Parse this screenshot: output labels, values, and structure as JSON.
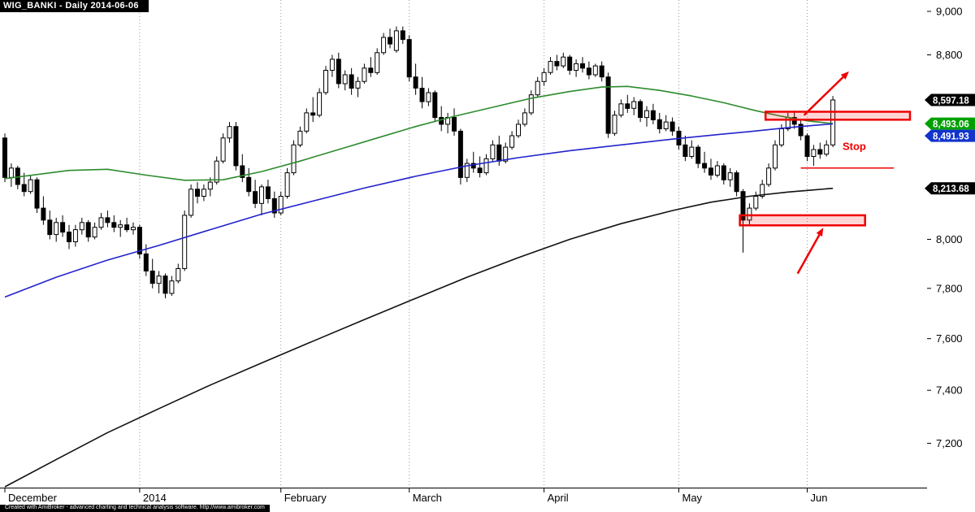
{
  "title": "WIG_BANKI - Daily 2014-06-06",
  "footer": "Created with AmiBroker - advanced charting and technical analysis software. http://www.amibroker.com",
  "axis": {
    "y_ticks": [
      {
        "label": "9,000",
        "value": 9000
      },
      {
        "label": "8,800",
        "value": 8800
      },
      {
        "label": "8,000",
        "value": 8000
      },
      {
        "label": "7,800",
        "value": 7800
      },
      {
        "label": "7,600",
        "value": 7600
      },
      {
        "label": "7,400",
        "value": 7400
      },
      {
        "label": "7,200",
        "value": 7200
      }
    ],
    "x_labels": [
      {
        "label": "December",
        "index": 0
      },
      {
        "label": "2014",
        "index": 21
      },
      {
        "label": "February",
        "index": 43
      },
      {
        "label": "March",
        "index": 63
      },
      {
        "label": "April",
        "index": 84
      },
      {
        "label": "May",
        "index": 105
      },
      {
        "label": "Jun",
        "index": 125
      }
    ]
  },
  "callouts": [
    {
      "label": "8,597.18",
      "value": 8597.18,
      "bg": "#000000"
    },
    {
      "label": "8,493.06",
      "value": 8493.06,
      "bg": "#00a000"
    },
    {
      "label": "8,491.93",
      "value": 8491.93,
      "bg": "#1133cc"
    },
    {
      "label": "8,213.68",
      "value": 8213.68,
      "bg": "#000000"
    }
  ],
  "annotations": {
    "accent_red": "#ee0000",
    "boxes": [
      {
        "name": "resistance-box",
        "index_from": 118.5,
        "index_to": 141,
        "price_from": 8510,
        "price_to": 8545
      },
      {
        "name": "support-box",
        "index_from": 114.5,
        "index_to": 134,
        "price_from": 8058,
        "price_to": 8100
      }
    ],
    "arrows": [
      {
        "name": "breakout-arrow",
        "from_index": 124.5,
        "from_price": 8530,
        "to_index": 131.5,
        "to_price": 8725
      },
      {
        "name": "support-arrow",
        "from_index": 123.5,
        "from_price": 7860,
        "to_index": 127.5,
        "to_price": 8048
      }
    ],
    "stop": {
      "label": "Stop",
      "line_price": 8300,
      "line_index_from": 124,
      "line_index_to": 138.5,
      "label_index": 130.5,
      "label_price": 8378
    }
  },
  "chart_data": {
    "type": "candlestick",
    "symbol": "WIG_BANKI",
    "interval": "Daily",
    "as_of_date": "2014-06-06",
    "scale": "log",
    "ylim": [
      7037,
      9053
    ],
    "last_close": 8597.18,
    "candles": [
      [
        8430,
        8450,
        8240,
        8260
      ],
      [
        8260,
        8320,
        8220,
        8300
      ],
      [
        8300,
        8310,
        8210,
        8230
      ],
      [
        8230,
        8280,
        8180,
        8200
      ],
      [
        8200,
        8270,
        8190,
        8250
      ],
      [
        8250,
        8260,
        8110,
        8130
      ],
      [
        8130,
        8180,
        8060,
        8080
      ],
      [
        8080,
        8120,
        8000,
        8020
      ],
      [
        8020,
        8090,
        7990,
        8070
      ],
      [
        8070,
        8100,
        8010,
        8030
      ],
      [
        8030,
        8060,
        7960,
        7990
      ],
      [
        7990,
        8060,
        7970,
        8040
      ],
      [
        8040,
        8090,
        8020,
        8070
      ],
      [
        8070,
        8080,
        7990,
        8010
      ],
      [
        8010,
        8070,
        8000,
        8050
      ],
      [
        8050,
        8110,
        8040,
        8090
      ],
      [
        8090,
        8120,
        8050,
        8070
      ],
      [
        8070,
        8100,
        8030,
        8050
      ],
      [
        8050,
        8080,
        8010,
        8060
      ],
      [
        8060,
        8090,
        8030,
        8040
      ],
      [
        8040,
        8070,
        8020,
        8050
      ],
      [
        8050,
        8060,
        7920,
        7940
      ],
      [
        7940,
        7980,
        7850,
        7870
      ],
      [
        7870,
        7920,
        7800,
        7820
      ],
      [
        7820,
        7870,
        7780,
        7850
      ],
      [
        7850,
        7860,
        7760,
        7780
      ],
      [
        7780,
        7850,
        7770,
        7830
      ],
      [
        7830,
        7900,
        7820,
        7880
      ],
      [
        7880,
        8120,
        7870,
        8100
      ],
      [
        8100,
        8230,
        8090,
        8210
      ],
      [
        8210,
        8240,
        8150,
        8180
      ],
      [
        8180,
        8230,
        8160,
        8210
      ],
      [
        8210,
        8260,
        8180,
        8240
      ],
      [
        8240,
        8350,
        8230,
        8330
      ],
      [
        8330,
        8450,
        8320,
        8430
      ],
      [
        8430,
        8500,
        8410,
        8480
      ],
      [
        8480,
        8500,
        8290,
        8310
      ],
      [
        8310,
        8360,
        8240,
        8260
      ],
      [
        8260,
        8300,
        8180,
        8200
      ],
      [
        8200,
        8250,
        8130,
        8150
      ],
      [
        8150,
        8230,
        8100,
        8220
      ],
      [
        8220,
        8250,
        8150,
        8170
      ],
      [
        8170,
        8200,
        8090,
        8110
      ],
      [
        8110,
        8200,
        8100,
        8180
      ],
      [
        8180,
        8300,
        8170,
        8280
      ],
      [
        8280,
        8420,
        8270,
        8400
      ],
      [
        8400,
        8480,
        8390,
        8460
      ],
      [
        8460,
        8560,
        8450,
        8540
      ],
      [
        8540,
        8610,
        8500,
        8530
      ],
      [
        8530,
        8650,
        8520,
        8630
      ],
      [
        8630,
        8750,
        8620,
        8730
      ],
      [
        8730,
        8800,
        8700,
        8780
      ],
      [
        8780,
        8810,
        8650,
        8670
      ],
      [
        8670,
        8730,
        8640,
        8710
      ],
      [
        8710,
        8740,
        8620,
        8650
      ],
      [
        8650,
        8700,
        8610,
        8680
      ],
      [
        8680,
        8760,
        8670,
        8740
      ],
      [
        8740,
        8790,
        8700,
        8720
      ],
      [
        8720,
        8830,
        8710,
        8810
      ],
      [
        8810,
        8900,
        8800,
        8880
      ],
      [
        8880,
        8920,
        8830,
        8850
      ],
      [
        8820,
        8930,
        8810,
        8910
      ],
      [
        8910,
        8930,
        8850,
        8870
      ],
      [
        8870,
        8890,
        8680,
        8700
      ],
      [
        8700,
        8760,
        8620,
        8650
      ],
      [
        8650,
        8700,
        8560,
        8590
      ],
      [
        8590,
        8650,
        8570,
        8630
      ],
      [
        8630,
        8640,
        8500,
        8520
      ],
      [
        8520,
        8570,
        8460,
        8490
      ],
      [
        8490,
        8540,
        8450,
        8520
      ],
      [
        8520,
        8560,
        8440,
        8460
      ],
      [
        8460,
        8470,
        8230,
        8260
      ],
      [
        8260,
        8340,
        8240,
        8320
      ],
      [
        8320,
        8370,
        8280,
        8300
      ],
      [
        8300,
        8350,
        8260,
        8280
      ],
      [
        8280,
        8360,
        8270,
        8340
      ],
      [
        8340,
        8420,
        8330,
        8400
      ],
      [
        8400,
        8440,
        8310,
        8330
      ],
      [
        8330,
        8410,
        8320,
        8390
      ],
      [
        8390,
        8460,
        8380,
        8440
      ],
      [
        8440,
        8510,
        8430,
        8490
      ],
      [
        8490,
        8560,
        8480,
        8540
      ],
      [
        8540,
        8640,
        8530,
        8620
      ],
      [
        8620,
        8700,
        8610,
        8680
      ],
      [
        8680,
        8740,
        8660,
        8720
      ],
      [
        8720,
        8790,
        8710,
        8770
      ],
      [
        8770,
        8800,
        8730,
        8750
      ],
      [
        8750,
        8810,
        8740,
        8790
      ],
      [
        8790,
        8800,
        8710,
        8730
      ],
      [
        8730,
        8780,
        8700,
        8760
      ],
      [
        8760,
        8790,
        8720,
        8740
      ],
      [
        8740,
        8770,
        8690,
        8710
      ],
      [
        8710,
        8760,
        8700,
        8750
      ],
      [
        8750,
        8770,
        8680,
        8700
      ],
      [
        8700,
        8720,
        8430,
        8450
      ],
      [
        8450,
        8550,
        8440,
        8530
      ],
      [
        8530,
        8600,
        8520,
        8580
      ],
      [
        8580,
        8620,
        8540,
        8560
      ],
      [
        8560,
        8610,
        8530,
        8590
      ],
      [
        8590,
        8600,
        8500,
        8520
      ],
      [
        8520,
        8570,
        8480,
        8550
      ],
      [
        8550,
        8580,
        8490,
        8510
      ],
      [
        8510,
        8540,
        8450,
        8470
      ],
      [
        8470,
        8530,
        8460,
        8500
      ],
      [
        8500,
        8520,
        8440,
        8460
      ],
      [
        8460,
        8480,
        8380,
        8400
      ],
      [
        8400,
        8440,
        8330,
        8350
      ],
      [
        8350,
        8420,
        8340,
        8390
      ],
      [
        8390,
        8400,
        8300,
        8320
      ],
      [
        8320,
        8370,
        8280,
        8300
      ],
      [
        8300,
        8340,
        8250,
        8270
      ],
      [
        8270,
        8330,
        8260,
        8310
      ],
      [
        8310,
        8320,
        8230,
        8250
      ],
      [
        8250,
        8300,
        8220,
        8280
      ],
      [
        8280,
        8290,
        8180,
        8200
      ],
      [
        8200,
        8210,
        7945,
        8080
      ],
      [
        8080,
        8150,
        8060,
        8130
      ],
      [
        8130,
        8200,
        8120,
        8180
      ],
      [
        8180,
        8250,
        8170,
        8230
      ],
      [
        8230,
        8320,
        8220,
        8300
      ],
      [
        8300,
        8420,
        8290,
        8400
      ],
      [
        8400,
        8490,
        8390,
        8470
      ],
      [
        8470,
        8540,
        8460,
        8520
      ],
      [
        8520,
        8550,
        8470,
        8490
      ],
      [
        8490,
        8510,
        8420,
        8440
      ],
      [
        8440,
        8450,
        8330,
        8350
      ],
      [
        8350,
        8400,
        8310,
        8380
      ],
      [
        8380,
        8410,
        8340,
        8360
      ],
      [
        8360,
        8420,
        8350,
        8400
      ],
      [
        8400,
        8615,
        8390,
        8597.18
      ]
    ],
    "series": [
      {
        "name": "ma-green-line",
        "color": "#2e8b2e",
        "points": [
          [
            0,
            8255
          ],
          [
            10,
            8290
          ],
          [
            16,
            8295
          ],
          [
            22,
            8270
          ],
          [
            28,
            8248
          ],
          [
            34,
            8250
          ],
          [
            40,
            8285
          ],
          [
            46,
            8330
          ],
          [
            52,
            8380
          ],
          [
            58,
            8430
          ],
          [
            64,
            8480
          ],
          [
            70,
            8525
          ],
          [
            76,
            8565
          ],
          [
            82,
            8605
          ],
          [
            88,
            8635
          ],
          [
            93,
            8655
          ],
          [
            97,
            8658
          ],
          [
            102,
            8640
          ],
          [
            107,
            8615
          ],
          [
            112,
            8585
          ],
          [
            117,
            8550
          ],
          [
            121,
            8525
          ],
          [
            125,
            8505
          ],
          [
            129,
            8493.06
          ]
        ]
      },
      {
        "name": "ma-blue-line",
        "color": "#2222cc",
        "points": [
          [
            0,
            7765
          ],
          [
            8,
            7845
          ],
          [
            16,
            7915
          ],
          [
            24,
            7975
          ],
          [
            32,
            8040
          ],
          [
            40,
            8105
          ],
          [
            48,
            8160
          ],
          [
            56,
            8215
          ],
          [
            64,
            8265
          ],
          [
            72,
            8310
          ],
          [
            80,
            8345
          ],
          [
            88,
            8375
          ],
          [
            96,
            8400
          ],
          [
            104,
            8425
          ],
          [
            110,
            8442
          ],
          [
            116,
            8458
          ],
          [
            122,
            8475
          ],
          [
            126,
            8485
          ],
          [
            129,
            8491.93
          ]
        ]
      },
      {
        "name": "ma-black-line",
        "color": "#111111",
        "points": [
          [
            0,
            7040
          ],
          [
            8,
            7140
          ],
          [
            16,
            7240
          ],
          [
            24,
            7330
          ],
          [
            32,
            7420
          ],
          [
            40,
            7505
          ],
          [
            48,
            7590
          ],
          [
            56,
            7675
          ],
          [
            64,
            7760
          ],
          [
            72,
            7845
          ],
          [
            80,
            7925
          ],
          [
            88,
            8000
          ],
          [
            96,
            8065
          ],
          [
            104,
            8120
          ],
          [
            110,
            8155
          ],
          [
            116,
            8180
          ],
          [
            122,
            8198
          ],
          [
            126,
            8207
          ],
          [
            129,
            8213.68
          ]
        ]
      }
    ]
  }
}
